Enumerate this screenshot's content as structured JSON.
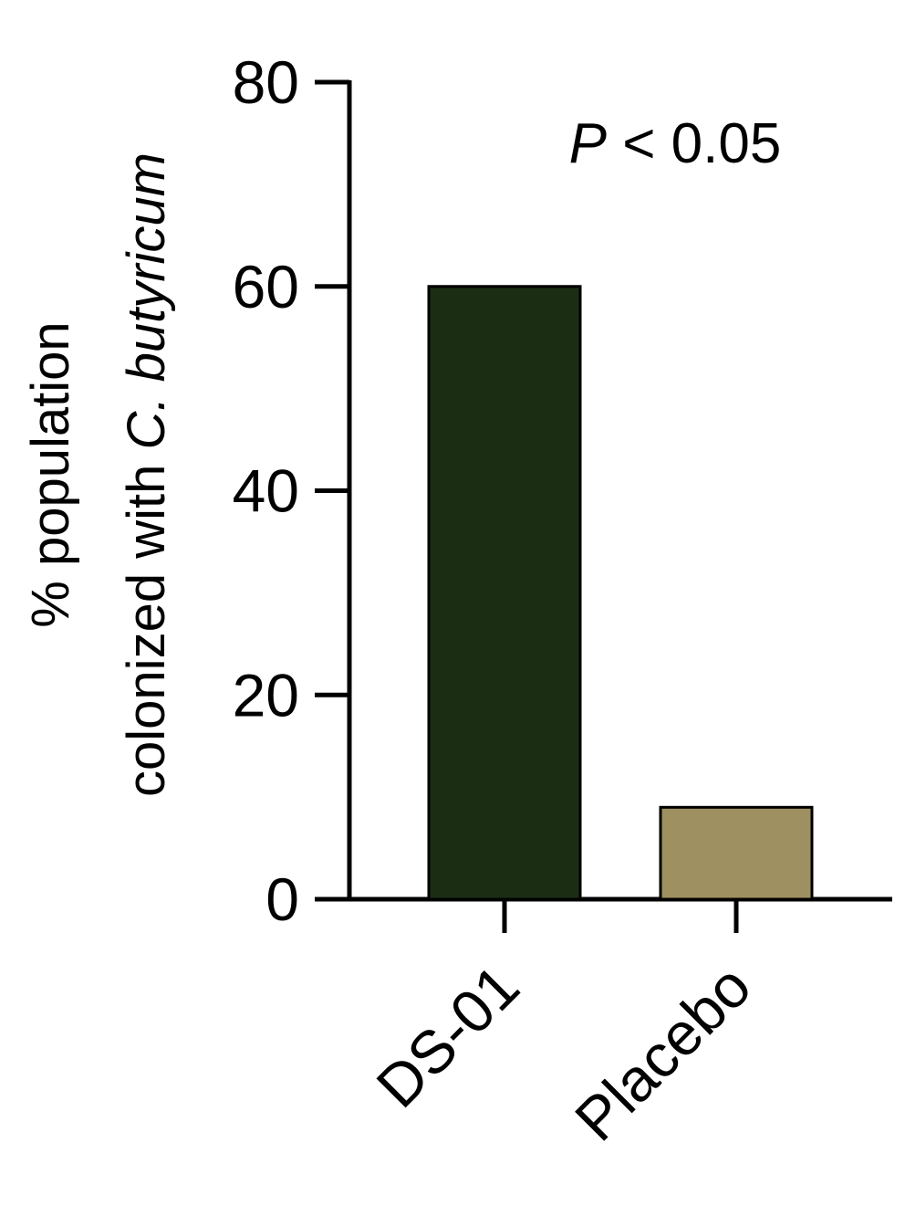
{
  "chart_data": {
    "type": "bar",
    "ylabel": {
      "line1": "% population",
      "line2": "colonized with",
      "line2_italic": "C. butyricum"
    },
    "annotation": {
      "italic": "P",
      "text": "< 0.05"
    },
    "categories": [
      "DS-01",
      "Placebo"
    ],
    "values": [
      60,
      9
    ],
    "colors": [
      "#1b2e14",
      "#9e9060"
    ],
    "ylim": [
      0,
      80
    ],
    "yticks": [
      0,
      20,
      40,
      60,
      80
    ],
    "grid": false
  }
}
